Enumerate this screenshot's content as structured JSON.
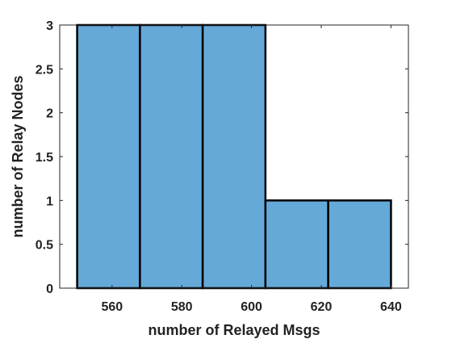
{
  "chart_data": {
    "type": "bar",
    "subtype": "histogram",
    "title": "",
    "xlabel": "number of Relayed Msgs",
    "ylabel": "number of Relay Nodes",
    "xlim": [
      545,
      645
    ],
    "ylim": [
      0,
      3
    ],
    "xticks": [
      560,
      580,
      600,
      620,
      640
    ],
    "yticks": [
      0,
      0.5,
      1,
      1.5,
      2,
      2.5,
      3
    ],
    "ytick_labels": [
      "0",
      "0.5",
      "1",
      "1.5",
      "2",
      "2.5",
      "3"
    ],
    "bins": [
      {
        "x0": 550,
        "x1": 568,
        "value": 3
      },
      {
        "x0": 568,
        "x1": 586,
        "value": 3
      },
      {
        "x0": 586,
        "x1": 604,
        "value": 3
      },
      {
        "x0": 604,
        "x1": 622,
        "value": 1
      },
      {
        "x0": 622,
        "x1": 640,
        "value": 1
      }
    ],
    "grid": false,
    "legend": "none",
    "colors": {
      "bar_fill": "#65a9d9",
      "bar_edge": "#000000",
      "axis": "#262626",
      "text": "#222222",
      "background": "#ffffff"
    }
  }
}
